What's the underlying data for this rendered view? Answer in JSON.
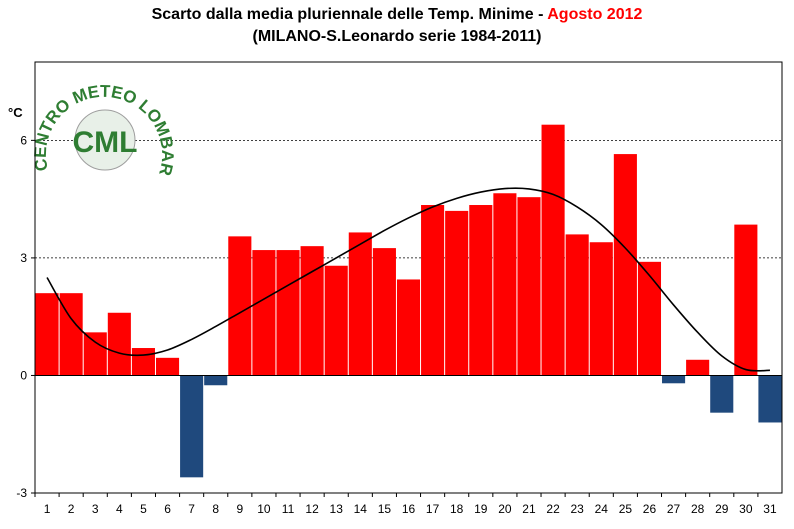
{
  "title": {
    "line1_prefix": "Scarto dalla media pluriennale delle Temp. Minime - ",
    "line1_accent": "Agosto 2012",
    "line2": "(MILANO-S.Leonardo serie 1984-2011)"
  },
  "logo": {
    "arc_text": "CENTRO METEO LOMBARDO",
    "center_text": "CML"
  },
  "colors": {
    "positive": "#ff0000",
    "negative": "#1f497d",
    "curve": "#000000",
    "grid": "#000000",
    "logo": "#2e7d32"
  },
  "chart_data": {
    "type": "bar",
    "title": "Scarto dalla media pluriennale delle Temp. Minime - Agosto 2012 (MILANO-S.Leonardo serie 1984-2011)",
    "ylabel": "°C",
    "xlabel": "",
    "ylim": [
      -3,
      8
    ],
    "yticks": [
      -3,
      0,
      3,
      6
    ],
    "grid": "horizontal dotted at 3 and 6",
    "legend": "none",
    "categories": [
      "1",
      "2",
      "3",
      "4",
      "5",
      "6",
      "7",
      "8",
      "9",
      "10",
      "11",
      "12",
      "13",
      "14",
      "15",
      "16",
      "17",
      "18",
      "19",
      "20",
      "21",
      "22",
      "23",
      "24",
      "25",
      "26",
      "27",
      "28",
      "29",
      "30",
      "31"
    ],
    "values": [
      2.1,
      2.1,
      1.1,
      1.6,
      0.7,
      0.45,
      -2.6,
      -0.25,
      3.55,
      3.2,
      3.2,
      3.3,
      2.8,
      3.65,
      3.25,
      2.45,
      4.35,
      4.2,
      4.35,
      4.65,
      4.55,
      6.4,
      3.6,
      3.4,
      5.65,
      2.9,
      -0.2,
      0.4,
      -0.95,
      3.85,
      -1.2
    ],
    "trend_curve": [
      2.5,
      1.45,
      0.85,
      0.57,
      0.52,
      0.65,
      0.92,
      1.25,
      1.6,
      1.95,
      2.3,
      2.65,
      3.0,
      3.35,
      3.7,
      4.02,
      4.3,
      4.52,
      4.68,
      4.77,
      4.76,
      4.62,
      4.3,
      3.85,
      3.25,
      2.55,
      1.8,
      1.1,
      0.5,
      0.15,
      0.13
    ]
  }
}
